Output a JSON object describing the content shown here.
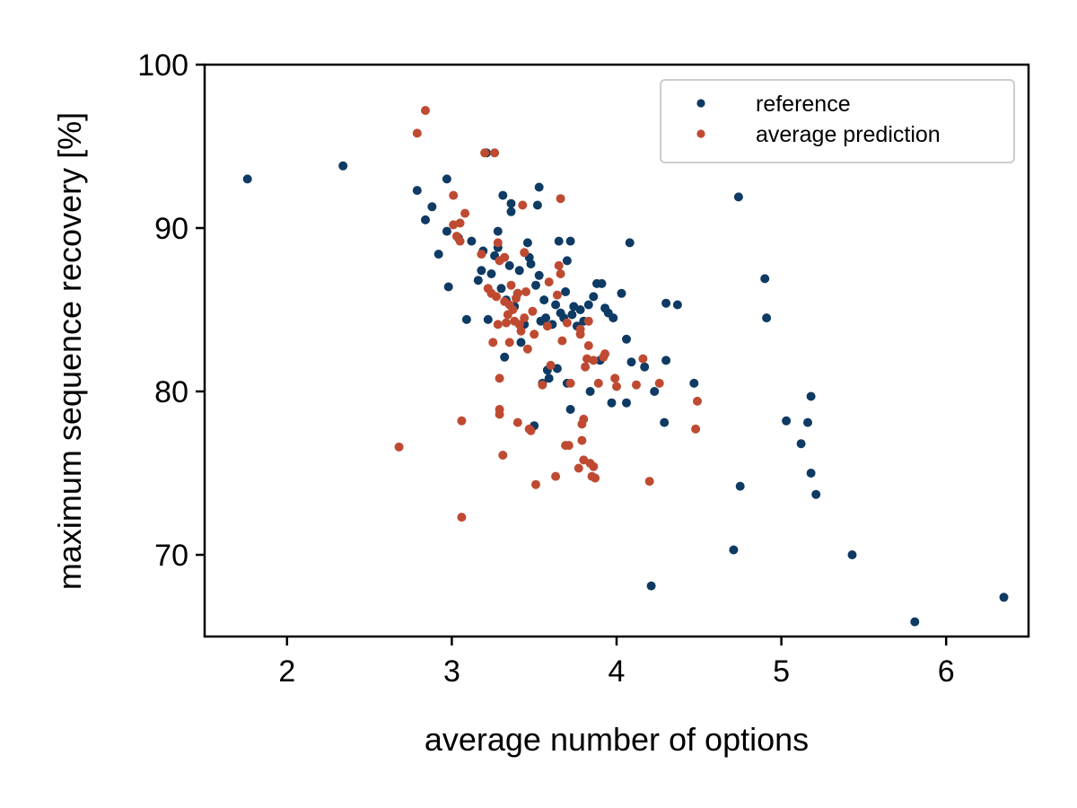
{
  "chart_data": {
    "type": "scatter",
    "xlabel": "average number of options",
    "ylabel": "maximum sequence recovery [%]",
    "xlim": [
      1.5,
      6.5
    ],
    "ylim": [
      65,
      100
    ],
    "xticks": [
      2,
      3,
      4,
      5,
      6
    ],
    "yticks": [
      70,
      80,
      90,
      100
    ],
    "grid": false,
    "legend_position": "top-right",
    "series": [
      {
        "name": "reference",
        "color": "#0e3a63",
        "points": [
          [
            1.76,
            93.0
          ],
          [
            2.34,
            93.8
          ],
          [
            2.79,
            92.3
          ],
          [
            2.84,
            90.5
          ],
          [
            2.88,
            91.3
          ],
          [
            2.92,
            88.4
          ],
          [
            2.97,
            93.0
          ],
          [
            2.97,
            89.8
          ],
          [
            2.98,
            86.4
          ],
          [
            3.04,
            89.4
          ],
          [
            3.09,
            84.4
          ],
          [
            3.12,
            89.2
          ],
          [
            3.16,
            86.8
          ],
          [
            3.18,
            87.4
          ],
          [
            3.19,
            88.6
          ],
          [
            3.21,
            94.6
          ],
          [
            3.22,
            84.4
          ],
          [
            3.24,
            87.2
          ],
          [
            3.26,
            88.3
          ],
          [
            3.28,
            89.8
          ],
          [
            3.28,
            88.8
          ],
          [
            3.3,
            86.3
          ],
          [
            3.31,
            92.0
          ],
          [
            3.32,
            82.1
          ],
          [
            3.33,
            85.6
          ],
          [
            3.35,
            87.7
          ],
          [
            3.36,
            91.5
          ],
          [
            3.36,
            91.0
          ],
          [
            3.38,
            85.2
          ],
          [
            3.4,
            86.0
          ],
          [
            3.41,
            87.4
          ],
          [
            3.42,
            83.0
          ],
          [
            3.44,
            84.1
          ],
          [
            3.46,
            89.1
          ],
          [
            3.47,
            88.2
          ],
          [
            3.48,
            87.8
          ],
          [
            3.5,
            77.9
          ],
          [
            3.51,
            86.5
          ],
          [
            3.52,
            91.4
          ],
          [
            3.53,
            92.5
          ],
          [
            3.53,
            87.1
          ],
          [
            3.54,
            84.3
          ],
          [
            3.55,
            80.5
          ],
          [
            3.56,
            85.6
          ],
          [
            3.57,
            84.5
          ],
          [
            3.58,
            81.3
          ],
          [
            3.59,
            80.8
          ],
          [
            3.61,
            84.1
          ],
          [
            3.63,
            85.3
          ],
          [
            3.64,
            81.4
          ],
          [
            3.65,
            89.2
          ],
          [
            3.66,
            84.8
          ],
          [
            3.68,
            84.5
          ],
          [
            3.69,
            86.1
          ],
          [
            3.7,
            88.0
          ],
          [
            3.7,
            80.5
          ],
          [
            3.72,
            89.2
          ],
          [
            3.72,
            78.9
          ],
          [
            3.73,
            84.7
          ],
          [
            3.74,
            85.2
          ],
          [
            3.76,
            84.0
          ],
          [
            3.78,
            85.0
          ],
          [
            3.8,
            84.3
          ],
          [
            3.83,
            85.3
          ],
          [
            3.84,
            80.0
          ],
          [
            3.86,
            85.8
          ],
          [
            3.88,
            86.6
          ],
          [
            3.9,
            81.9
          ],
          [
            3.91,
            86.6
          ],
          [
            3.93,
            85.1
          ],
          [
            3.95,
            84.8
          ],
          [
            3.97,
            79.3
          ],
          [
            3.98,
            84.5
          ],
          [
            4.03,
            86.0
          ],
          [
            4.06,
            83.2
          ],
          [
            4.06,
            79.3
          ],
          [
            4.08,
            89.1
          ],
          [
            4.09,
            81.8
          ],
          [
            4.17,
            81.5
          ],
          [
            4.23,
            80.0
          ],
          [
            4.29,
            78.1
          ],
          [
            4.3,
            85.4
          ],
          [
            4.3,
            81.9
          ],
          [
            4.37,
            85.3
          ],
          [
            4.47,
            80.5
          ],
          [
            4.71,
            70.3
          ],
          [
            4.74,
            91.9
          ],
          [
            4.75,
            74.2
          ],
          [
            4.9,
            86.9
          ],
          [
            4.91,
            84.5
          ],
          [
            5.03,
            78.2
          ],
          [
            5.12,
            76.8
          ],
          [
            5.16,
            78.1
          ],
          [
            5.18,
            75.0
          ],
          [
            5.18,
            79.7
          ],
          [
            5.21,
            73.7
          ],
          [
            5.43,
            70.0
          ],
          [
            5.81,
            65.9
          ],
          [
            6.35,
            67.4
          ],
          [
            4.21,
            68.1
          ]
        ]
      },
      {
        "name": "average prediction",
        "color": "#bf4a32",
        "points": [
          [
            2.68,
            76.6
          ],
          [
            2.79,
            95.8
          ],
          [
            2.84,
            97.2
          ],
          [
            3.01,
            92.0
          ],
          [
            3.01,
            90.2
          ],
          [
            3.03,
            89.5
          ],
          [
            3.05,
            90.3
          ],
          [
            3.05,
            89.2
          ],
          [
            3.06,
            78.2
          ],
          [
            3.06,
            72.3
          ],
          [
            3.08,
            90.9
          ],
          [
            3.18,
            88.4
          ],
          [
            3.2,
            94.6
          ],
          [
            3.22,
            86.3
          ],
          [
            3.24,
            86.0
          ],
          [
            3.25,
            83.0
          ],
          [
            3.26,
            94.6
          ],
          [
            3.27,
            85.8
          ],
          [
            3.28,
            84.1
          ],
          [
            3.28,
            89.1
          ],
          [
            3.29,
            88.0
          ],
          [
            3.29,
            80.8
          ],
          [
            3.29,
            78.9
          ],
          [
            3.29,
            78.6
          ],
          [
            3.31,
            76.1
          ],
          [
            3.32,
            88.2
          ],
          [
            3.32,
            85.5
          ],
          [
            3.33,
            84.2
          ],
          [
            3.34,
            84.7
          ],
          [
            3.35,
            85.3
          ],
          [
            3.35,
            83.0
          ],
          [
            3.36,
            86.5
          ],
          [
            3.37,
            85.0
          ],
          [
            3.38,
            84.3
          ],
          [
            3.39,
            85.7
          ],
          [
            3.4,
            86.0
          ],
          [
            3.4,
            78.1
          ],
          [
            3.41,
            84.1
          ],
          [
            3.42,
            83.7
          ],
          [
            3.43,
            91.4
          ],
          [
            3.44,
            88.5
          ],
          [
            3.44,
            84.5
          ],
          [
            3.45,
            86.1
          ],
          [
            3.46,
            82.6
          ],
          [
            3.47,
            77.7
          ],
          [
            3.48,
            77.6
          ],
          [
            3.49,
            84.9
          ],
          [
            3.5,
            83.5
          ],
          [
            3.51,
            74.3
          ],
          [
            3.55,
            80.4
          ],
          [
            3.58,
            84.0
          ],
          [
            3.59,
            86.7
          ],
          [
            3.6,
            81.6
          ],
          [
            3.63,
            74.8
          ],
          [
            3.64,
            85.9
          ],
          [
            3.65,
            87.7
          ],
          [
            3.66,
            91.8
          ],
          [
            3.66,
            87.2
          ],
          [
            3.67,
            83.1
          ],
          [
            3.69,
            76.7
          ],
          [
            3.7,
            84.2
          ],
          [
            3.71,
            76.7
          ],
          [
            3.72,
            80.5
          ],
          [
            3.77,
            75.3
          ],
          [
            3.78,
            83.5
          ],
          [
            3.78,
            83.8
          ],
          [
            3.79,
            78.0
          ],
          [
            3.79,
            77.0
          ],
          [
            3.8,
            75.8
          ],
          [
            3.8,
            78.3
          ],
          [
            3.81,
            81.5
          ],
          [
            3.82,
            82.0
          ],
          [
            3.83,
            84.3
          ],
          [
            3.83,
            82.8
          ],
          [
            3.84,
            75.6
          ],
          [
            3.85,
            74.8
          ],
          [
            3.86,
            75.4
          ],
          [
            3.86,
            81.9
          ],
          [
            3.87,
            74.7
          ],
          [
            3.89,
            80.5
          ],
          [
            3.92,
            82.1
          ],
          [
            3.93,
            82.3
          ],
          [
            3.99,
            80.8
          ],
          [
            4.0,
            80.3
          ],
          [
            4.12,
            80.4
          ],
          [
            4.16,
            82.0
          ],
          [
            4.2,
            74.5
          ],
          [
            4.26,
            80.5
          ],
          [
            4.48,
            77.7
          ],
          [
            4.49,
            79.4
          ]
        ]
      }
    ]
  }
}
